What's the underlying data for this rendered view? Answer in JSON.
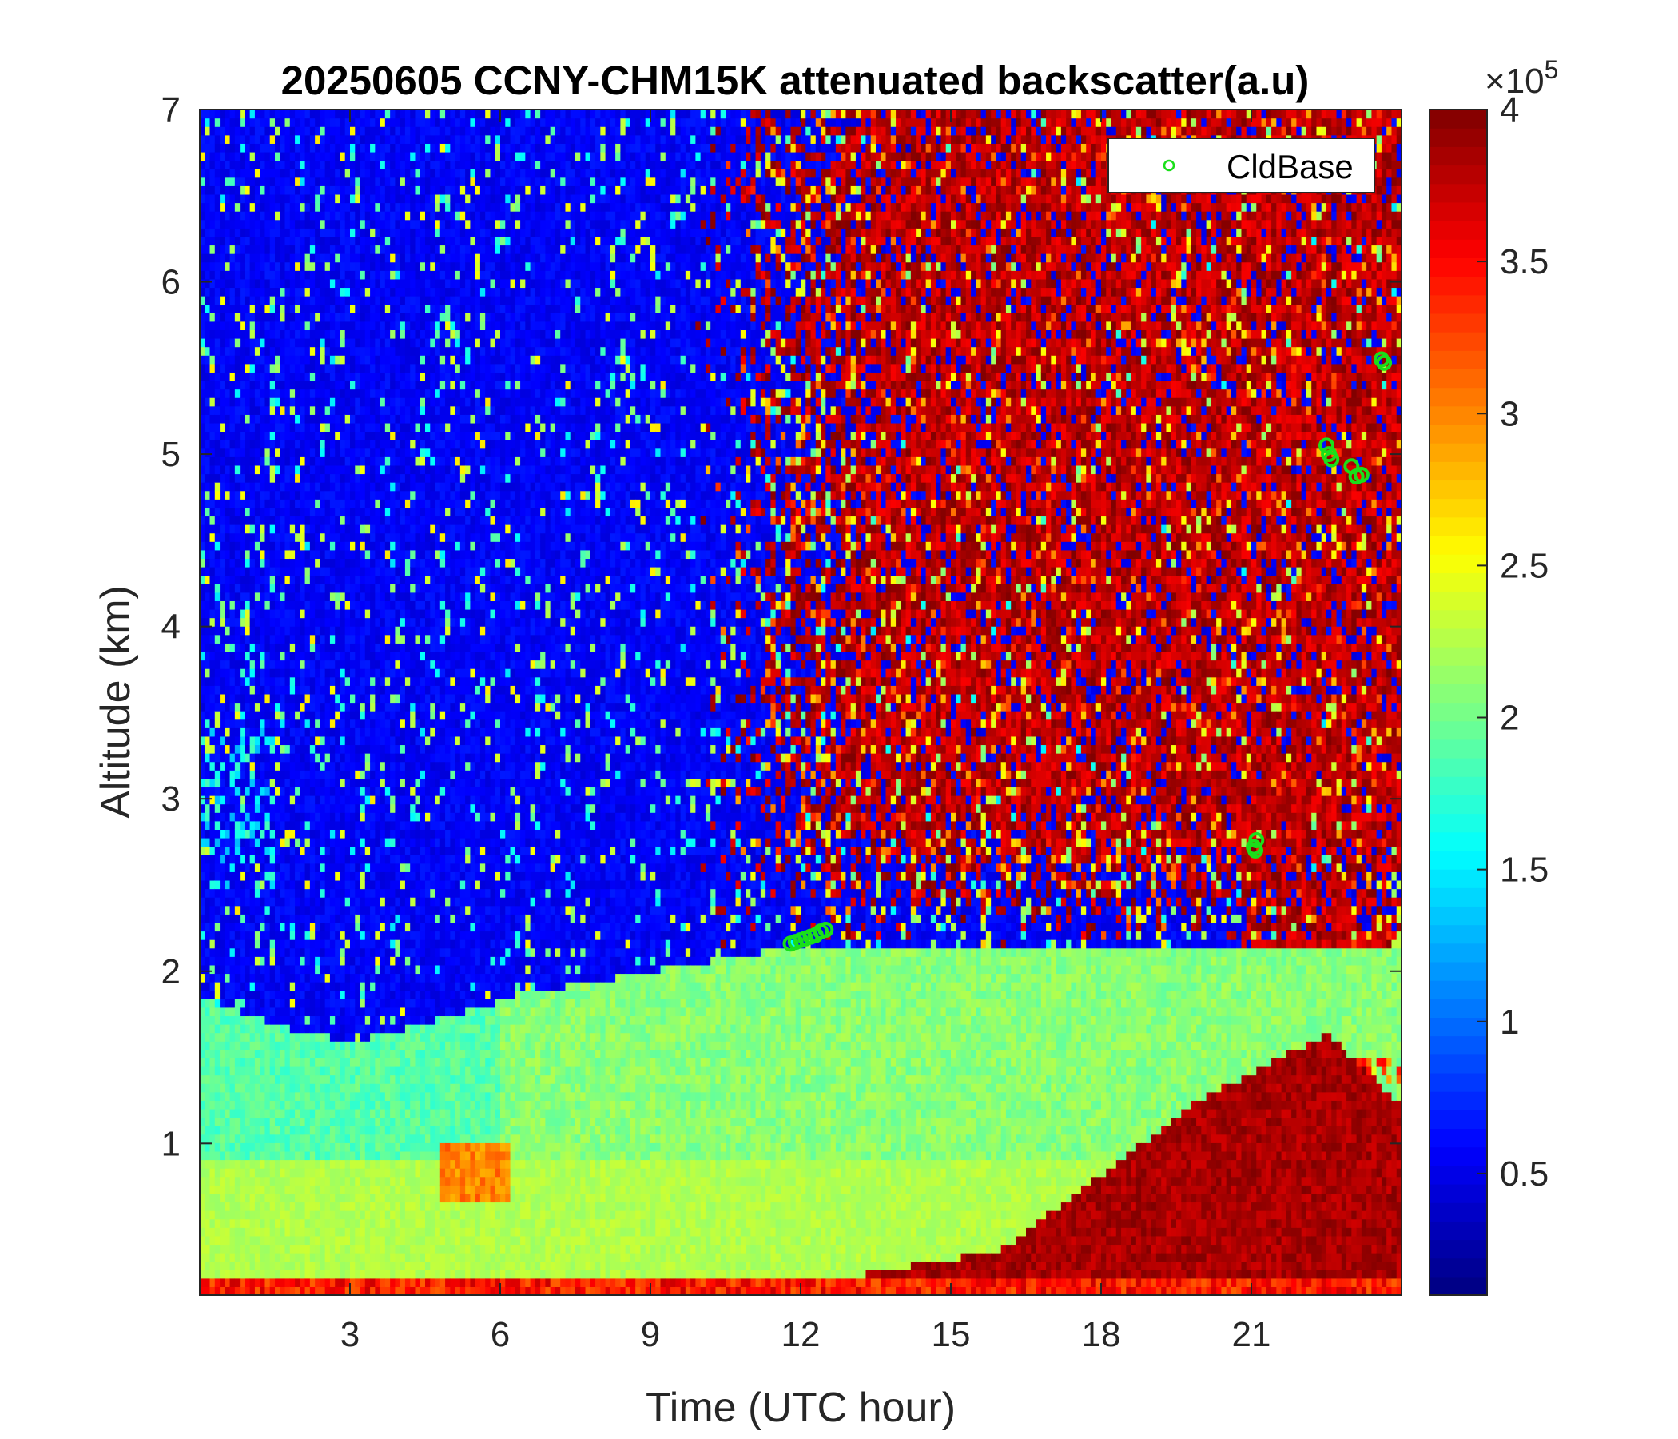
{
  "chart_data": {
    "type": "heatmap",
    "title": "20250605 CCNY-CHM15K attenuated backscatter(a.u)",
    "xlabel": "Time (UTC hour)",
    "ylabel": "Altitude (km)",
    "xlim": [
      0,
      24
    ],
    "ylim": [
      0.12,
      7
    ],
    "x_ticks": [
      3,
      6,
      9,
      12,
      15,
      18,
      21
    ],
    "x_tick_labels": [
      "3",
      "6",
      "9",
      "12",
      "15",
      "18",
      "21"
    ],
    "y_ticks": [
      1,
      2,
      3,
      4,
      5,
      6,
      7
    ],
    "y_tick_labels": [
      "1",
      "2",
      "3",
      "4",
      "5",
      "6",
      "7"
    ],
    "colormap": "jet",
    "colorbar": {
      "min": 10000,
      "max": 400000,
      "exponent_label": "×10",
      "exponent_power": "5",
      "ticks": [
        0.5,
        1,
        1.5,
        2,
        2.5,
        3,
        3.5,
        4
      ],
      "tick_labels": [
        "0.5",
        "1",
        "1.5",
        "2",
        "2.5",
        "3",
        "3.5",
        "4"
      ]
    },
    "legend": {
      "entries": [
        "CldBase"
      ],
      "placement": "top-right",
      "marker_color": "#1adf1a"
    },
    "cloud_base_points": [
      {
        "x": 11.8,
        "y": 2.16
      },
      {
        "x": 11.9,
        "y": 2.17
      },
      {
        "x": 12.0,
        "y": 2.18
      },
      {
        "x": 12.1,
        "y": 2.19
      },
      {
        "x": 12.2,
        "y": 2.2
      },
      {
        "x": 12.3,
        "y": 2.21
      },
      {
        "x": 12.4,
        "y": 2.23
      },
      {
        "x": 12.5,
        "y": 2.24
      },
      {
        "x": 21.05,
        "y": 2.72
      },
      {
        "x": 21.1,
        "y": 2.76
      },
      {
        "x": 21.08,
        "y": 2.7
      },
      {
        "x": 22.5,
        "y": 5.05
      },
      {
        "x": 22.55,
        "y": 5.0
      },
      {
        "x": 22.6,
        "y": 4.97
      },
      {
        "x": 23.0,
        "y": 4.93
      },
      {
        "x": 23.1,
        "y": 4.87
      },
      {
        "x": 23.2,
        "y": 4.88
      },
      {
        "x": 23.6,
        "y": 5.55
      },
      {
        "x": 23.65,
        "y": 5.53
      }
    ],
    "description": "Low altitudes show yellow-green aerosol layer (~2-2.5e5) below ~2 km in first half of day; free troposphere dark blue (~0.3e5) before 10 UTC; afternoon background noisy red (~4e5) aloft; dark red boundary layer near surface from 16-24 UTC rising to ~1.5 km."
  }
}
